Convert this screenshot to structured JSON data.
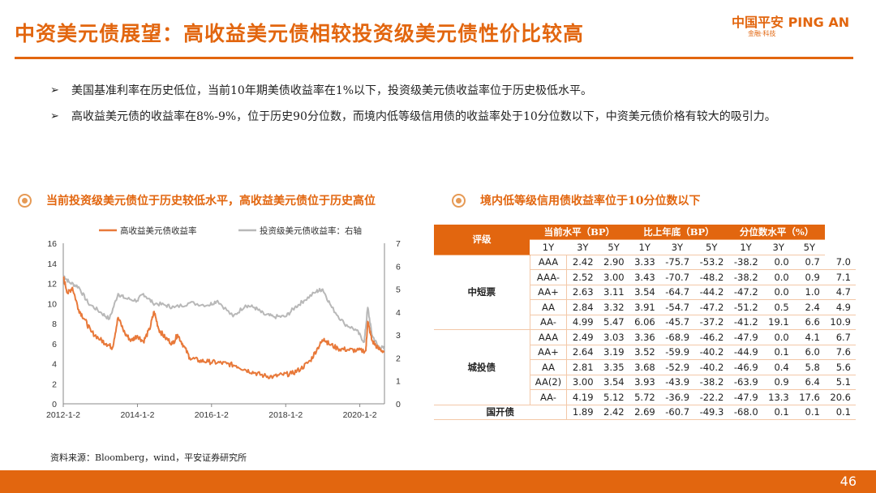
{
  "title": "中资美元债展望：高收益美元债相较投资级美元债性价比较高",
  "logo": {
    "main": "中国平安 PING AN",
    "sub": "金融·科技"
  },
  "bullets": [
    "美国基准利率在历史低位，当前10年期美债收益率在1%以下，投资级美元债收益率位于历史极低水平。",
    "高收益美元债的收益率在8%-9%，位于历史90分位数，而境内低等级信用债的收益率处于10分位数以下，中资美元债价格有较大的吸引力。"
  ],
  "bullet_marker": "➢",
  "section_left": "当前投资级美元债位于历史较低水平，高收益美元债位于历史高位",
  "section_right": "境内低等级信用债收益率位于10分位数以下",
  "colors": {
    "accent": "#e2660f",
    "hy_line": "#e8793a",
    "ig_line": "#b8b8b8",
    "border": "#f3c8a8"
  },
  "chart_data": {
    "type": "line",
    "x_ticks": [
      "2012-1-2",
      "2014-1-2",
      "2016-1-2",
      "2018-1-2",
      "2020-1-2"
    ],
    "x_range": [
      "2012-01-02",
      "2020-09-01"
    ],
    "ylim_left": [
      0,
      16
    ],
    "yticks_left": [
      0,
      2,
      4,
      6,
      8,
      10,
      12,
      14,
      16
    ],
    "ylim_right": [
      0,
      7
    ],
    "yticks_right": [
      0,
      1,
      2,
      3,
      4,
      5,
      6,
      7
    ],
    "legend_position": "top",
    "grid": false,
    "series": [
      {
        "name": "高收益美元债收益率",
        "axis": "left",
        "color": "#e8793a",
        "points": [
          [
            "2012-01-02",
            12.6
          ],
          [
            "2012-02-15",
            11.0
          ],
          [
            "2012-04-01",
            11.6
          ],
          [
            "2012-06-01",
            9.4
          ],
          [
            "2012-08-01",
            8.4
          ],
          [
            "2012-10-01",
            7.2
          ],
          [
            "2013-01-01",
            6.4
          ],
          [
            "2013-03-01",
            6.0
          ],
          [
            "2013-05-01",
            5.6
          ],
          [
            "2013-06-25",
            8.6
          ],
          [
            "2013-09-01",
            7.0
          ],
          [
            "2013-11-01",
            6.3
          ],
          [
            "2014-01-01",
            6.8
          ],
          [
            "2014-03-01",
            6.2
          ],
          [
            "2014-05-01",
            7.4
          ],
          [
            "2014-06-15",
            9.2
          ],
          [
            "2014-08-01",
            7.4
          ],
          [
            "2014-10-01",
            6.6
          ],
          [
            "2014-12-15",
            6.0
          ],
          [
            "2015-02-01",
            6.9
          ],
          [
            "2015-04-01",
            5.8
          ],
          [
            "2015-06-01",
            4.6
          ],
          [
            "2015-09-01",
            4.3
          ],
          [
            "2015-12-01",
            4.2
          ],
          [
            "2016-03-01",
            4.1
          ],
          [
            "2016-06-01",
            4.0
          ],
          [
            "2016-09-01",
            3.8
          ],
          [
            "2016-12-01",
            3.4
          ],
          [
            "2017-03-01",
            3.1
          ],
          [
            "2017-06-01",
            2.8
          ],
          [
            "2017-09-01",
            2.7
          ],
          [
            "2017-12-01",
            2.9
          ],
          [
            "2018-03-01",
            3.0
          ],
          [
            "2018-06-01",
            3.5
          ],
          [
            "2018-09-01",
            4.3
          ],
          [
            "2018-11-15",
            5.6
          ],
          [
            "2019-01-15",
            6.5
          ],
          [
            "2019-03-01",
            6.0
          ],
          [
            "2019-06-01",
            5.5
          ],
          [
            "2019-09-01",
            5.4
          ],
          [
            "2019-12-01",
            5.3
          ],
          [
            "2020-03-01",
            5.3
          ],
          [
            "2020-03-20",
            8.2
          ],
          [
            "2020-05-01",
            6.3
          ],
          [
            "2020-07-01",
            5.5
          ],
          [
            "2020-09-01",
            5.2
          ]
        ]
      },
      {
        "name": "投资级美元债收益率：右轴",
        "axis": "right",
        "color": "#b8b8b8",
        "points": [
          [
            "2012-01-02",
            5.6
          ],
          [
            "2012-03-01",
            5.3
          ],
          [
            "2012-06-01",
            5.1
          ],
          [
            "2012-09-01",
            4.4
          ],
          [
            "2013-01-01",
            4.0
          ],
          [
            "2013-04-01",
            3.7
          ],
          [
            "2013-06-25",
            4.8
          ],
          [
            "2013-09-01",
            4.6
          ],
          [
            "2014-01-01",
            4.5
          ],
          [
            "2014-03-01",
            4.8
          ],
          [
            "2014-06-01",
            4.4
          ],
          [
            "2014-10-01",
            4.3
          ],
          [
            "2015-01-01",
            4.2
          ],
          [
            "2015-06-01",
            4.4
          ],
          [
            "2015-12-01",
            4.3
          ],
          [
            "2016-03-01",
            4.5
          ],
          [
            "2016-08-01",
            3.8
          ],
          [
            "2016-12-01",
            4.3
          ],
          [
            "2017-03-01",
            4.2
          ],
          [
            "2017-06-01",
            3.9
          ],
          [
            "2017-09-01",
            3.8
          ],
          [
            "2018-01-01",
            3.8
          ],
          [
            "2018-04-01",
            4.2
          ],
          [
            "2018-07-01",
            4.5
          ],
          [
            "2018-11-01",
            4.9
          ],
          [
            "2019-01-01",
            5.0
          ],
          [
            "2019-04-01",
            4.2
          ],
          [
            "2019-08-01",
            3.5
          ],
          [
            "2019-12-01",
            3.2
          ],
          [
            "2020-02-15",
            2.7
          ],
          [
            "2020-03-20",
            4.2
          ],
          [
            "2020-05-01",
            3.0
          ],
          [
            "2020-07-01",
            2.5
          ],
          [
            "2020-09-01",
            2.4
          ]
        ]
      }
    ]
  },
  "table": {
    "header_rating": "评级",
    "groups": [
      "当前水平（BP）",
      "比上年底（BP）",
      "分位数水平（%）"
    ],
    "subcols": [
      "1Y",
      "3Y",
      "5Y"
    ],
    "rows": [
      {
        "group": "中短票",
        "span": 5,
        "rating": "AAA",
        "v": [
          "2.42",
          "2.90",
          "3.33",
          "-75.7",
          "-53.2",
          "-38.2",
          "0.0",
          "0.7",
          "7.0"
        ]
      },
      {
        "rating": "AAA-",
        "v": [
          "2.52",
          "3.00",
          "3.43",
          "-70.7",
          "-48.2",
          "-38.2",
          "0.0",
          "0.9",
          "7.1"
        ]
      },
      {
        "rating": "AA+",
        "v": [
          "2.63",
          "3.11",
          "3.54",
          "-64.7",
          "-44.2",
          "-47.2",
          "0.0",
          "1.0",
          "4.7"
        ]
      },
      {
        "rating": "AA",
        "v": [
          "2.84",
          "3.32",
          "3.91",
          "-54.7",
          "-47.2",
          "-51.2",
          "0.5",
          "2.4",
          "4.9"
        ]
      },
      {
        "rating": "AA-",
        "v": [
          "4.99",
          "5.47",
          "6.06",
          "-45.7",
          "-37.2",
          "-41.2",
          "19.1",
          "6.6",
          "10.9"
        ]
      },
      {
        "group": "城投债",
        "span": 5,
        "rating": "AAA",
        "v": [
          "2.49",
          "3.03",
          "3.36",
          "-68.9",
          "-46.2",
          "-47.9",
          "0.0",
          "4.1",
          "6.7"
        ]
      },
      {
        "rating": "AA+",
        "v": [
          "2.64",
          "3.19",
          "3.52",
          "-59.9",
          "-40.2",
          "-44.9",
          "0.1",
          "6.0",
          "7.6"
        ]
      },
      {
        "rating": "AA",
        "v": [
          "2.81",
          "3.35",
          "3.68",
          "-52.9",
          "-40.2",
          "-46.9",
          "0.4",
          "5.8",
          "5.6"
        ]
      },
      {
        "rating": "AA(2)",
        "v": [
          "3.00",
          "3.54",
          "3.93",
          "-43.9",
          "-38.2",
          "-63.9",
          "0.9",
          "6.4",
          "5.1"
        ]
      },
      {
        "rating": "AA-",
        "v": [
          "4.19",
          "5.12",
          "5.72",
          "-36.9",
          "-22.2",
          "-47.9",
          "13.3",
          "17.6",
          "20.6"
        ]
      },
      {
        "group": "国开债",
        "span": 1,
        "rating": "",
        "v": [
          "1.89",
          "2.42",
          "2.69",
          "-60.7",
          "-49.3",
          "-68.0",
          "0.1",
          "0.1",
          "0.1"
        ]
      }
    ]
  },
  "source": "资料来源：Bloomberg，wind，平安证券研究所",
  "page_number": "46"
}
